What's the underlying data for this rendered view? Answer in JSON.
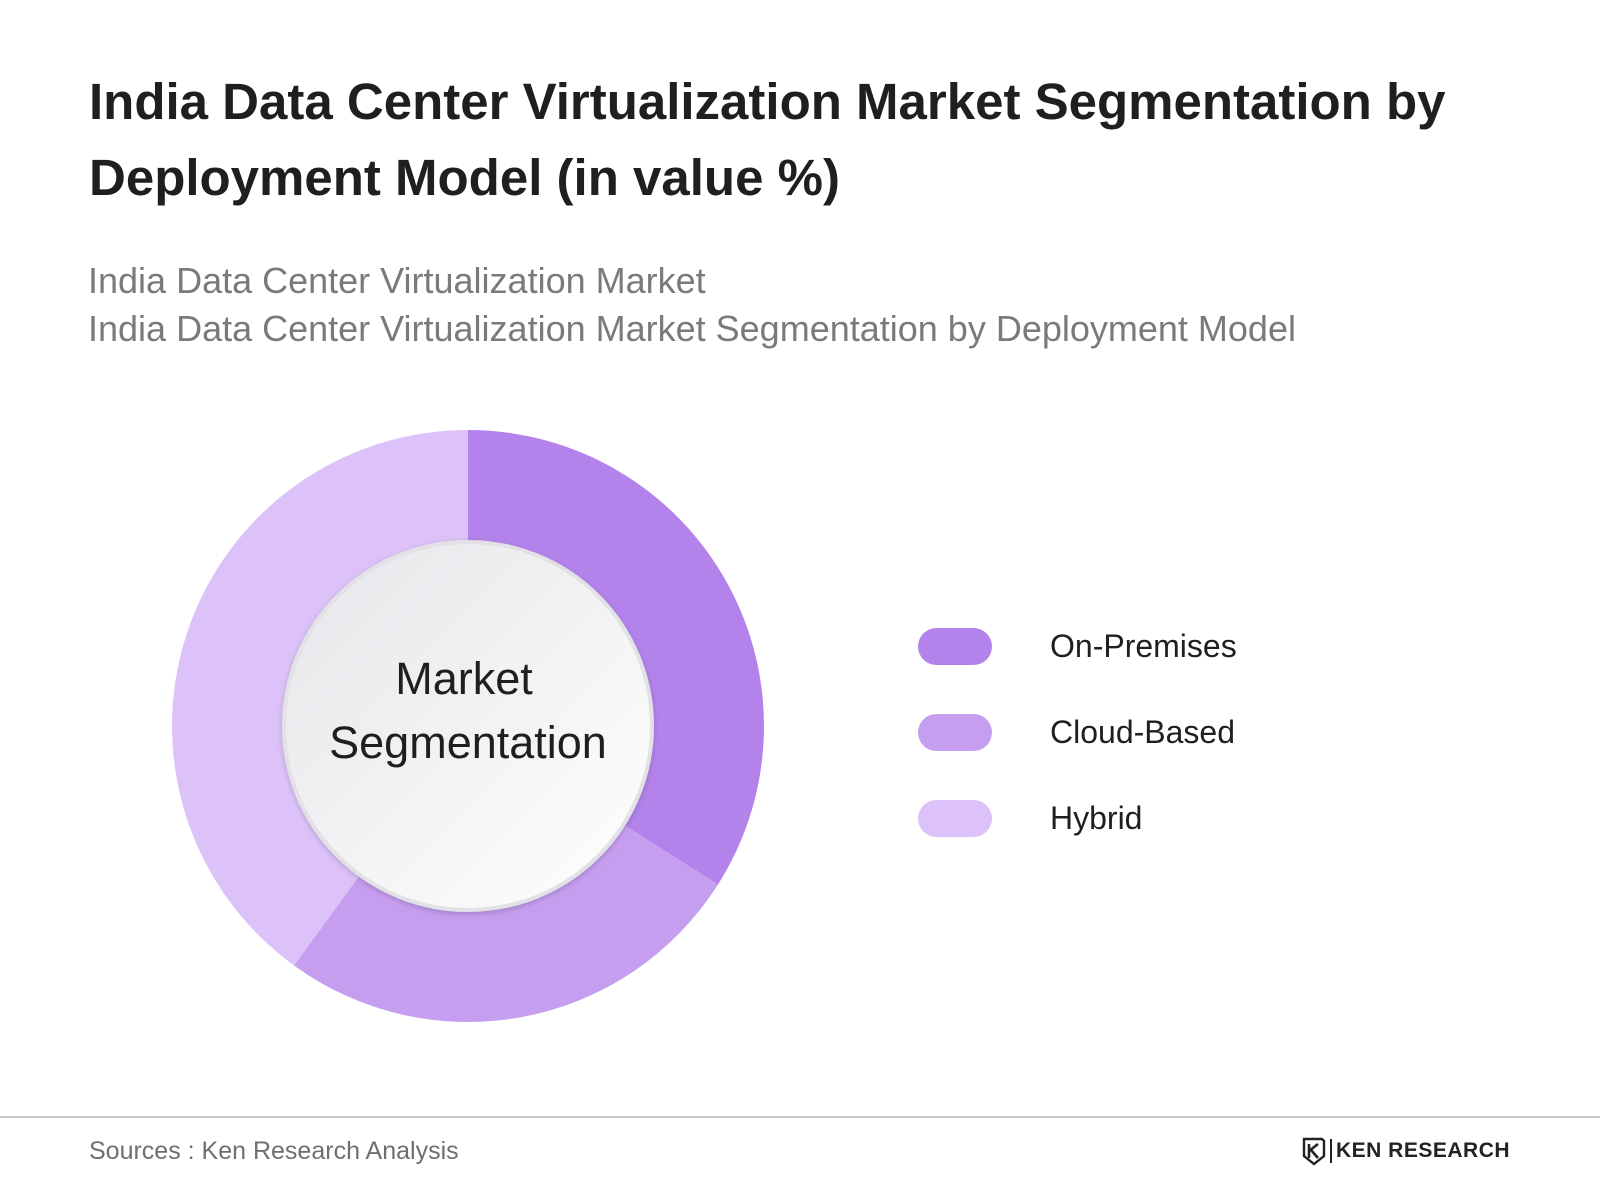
{
  "header": {
    "title": "India Data Center Virtualization Market Segmentation by Deployment Model (in value %)",
    "subtitle_line1": "India Data Center Virtualization Market",
    "subtitle_line2": "India Data Center Virtualization Market Segmentation by Deployment Model"
  },
  "chart_data": {
    "type": "pie",
    "variant": "donut",
    "center_label_line1": "Market",
    "center_label_line2": "Segmentation",
    "start_angle_deg": 0,
    "direction": "clockwise",
    "series": [
      {
        "name": "On-Premises",
        "value": 34,
        "color": "#b383eb"
      },
      {
        "name": "Cloud-Based",
        "value": 26,
        "color": "#c69ef0"
      },
      {
        "name": "Hybrid",
        "value": 40,
        "color": "#dcc2f8"
      }
    ],
    "legend_position": "right"
  },
  "footer": {
    "source": "Sources : Ken Research Analysis",
    "logo_text": "KEN RESEARCH"
  }
}
